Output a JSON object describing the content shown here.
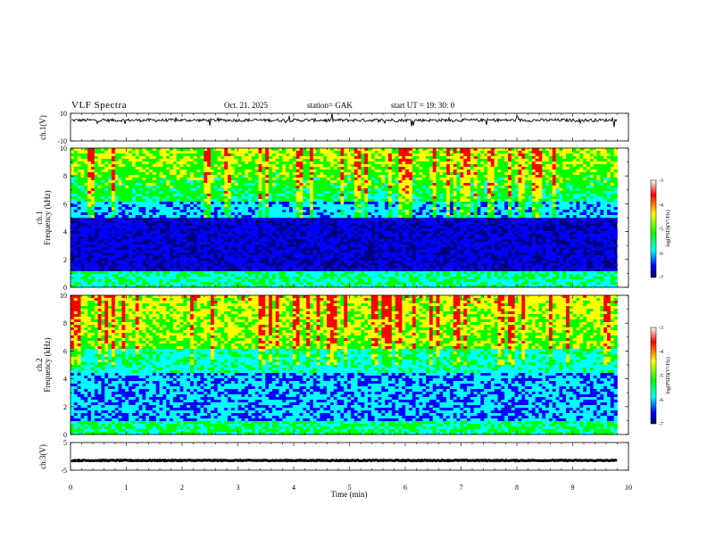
{
  "header": {
    "title": "VLF  Spectra",
    "date": "Oct. 21. 2025",
    "station": "station= GAK",
    "start_ut": "start  UT  =    19: 30: 0"
  },
  "chart_data": {
    "type": "heatmap",
    "x": {
      "label": "Time  (min)",
      "range": [
        0,
        10
      ],
      "ticks": [
        "0",
        "1",
        "2",
        "3",
        "4",
        "5",
        "6",
        "7",
        "8",
        "9",
        "10"
      ]
    },
    "panels": [
      {
        "id": "ch1-waveform",
        "type": "line",
        "ylabel": "ch.1(V)",
        "ylim": [
          -10,
          10
        ],
        "yticks": [
          "10",
          "-10"
        ],
        "baseline": 5
      },
      {
        "id": "ch1-spectrogram",
        "type": "heatmap",
        "ylabel_top": "ch.1",
        "ylabel": "Frequency  (kHz)",
        "ylim": [
          0,
          10
        ],
        "yticks": [
          "0",
          "2",
          "4",
          "6",
          "8",
          "10"
        ]
      },
      {
        "id": "ch2-spectrogram",
        "type": "heatmap",
        "ylabel_top": "ch.2",
        "ylabel": "Frequency  (kHz)",
        "ylim": [
          0,
          10
        ],
        "yticks": [
          "0",
          "2",
          "4",
          "6",
          "8",
          "10"
        ]
      },
      {
        "id": "ch3-waveform",
        "type": "line",
        "ylabel": "ch.3(V)",
        "ylim": [
          -5,
          5
        ],
        "yticks": [
          "5",
          "-5"
        ],
        "baseline": -1.5
      }
    ],
    "colorbar": {
      "label": "log(PSD)(V²/Hz)",
      "range": [
        -7,
        -3
      ],
      "ticks": [
        "-3",
        "-4",
        "-5",
        "-6",
        "-7"
      ],
      "colormap": [
        "#7f0000",
        "#ff0000",
        "#ffff00",
        "#00ff00",
        "#00ffff",
        "#0000ff",
        "#00007f"
      ]
    },
    "data_end_min": 9.8
  }
}
